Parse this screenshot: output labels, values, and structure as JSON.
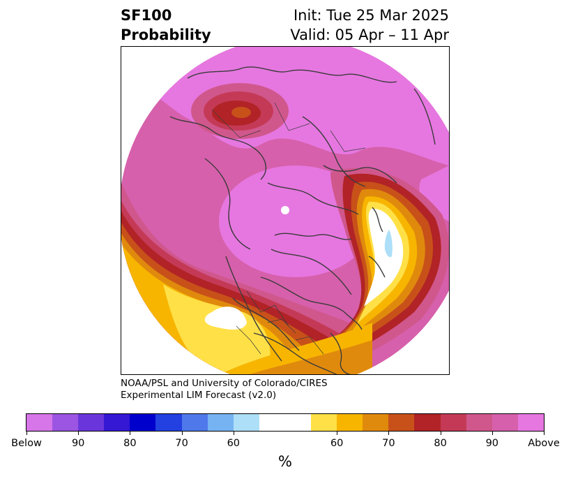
{
  "title": {
    "variable": "SF100",
    "subtitle": "Probability",
    "init": "Init: Tue 25 Mar 2025",
    "valid": "Valid: 05 Apr – 11 Apr"
  },
  "credit": {
    "line1": "NOAA/PSL and University of Colorado/CIRES",
    "line2": "Experimental LIM Forecast (v2.0)"
  },
  "colorbar": {
    "unit": "%",
    "colors": [
      "#d676e8",
      "#9b55e2",
      "#6a36db",
      "#3418d4",
      "#0000cd",
      "#2340e0",
      "#4f78ea",
      "#76b3f2",
      "#addff8",
      "#ffffff",
      "#ffffff",
      "#ffe047",
      "#f7b500",
      "#e08a0d",
      "#c8511a",
      "#b12326",
      "#c43a56",
      "#d0578c",
      "#d660ab",
      "#e677e0"
    ],
    "ticks": [
      "Below",
      "90",
      "80",
      "70",
      "60",
      "60",
      "70",
      "80",
      "90",
      "Above"
    ]
  },
  "map": {
    "projection": "polar-stereographic",
    "palette": {
      "magenta": "#e677e0",
      "pink": "#d660ab",
      "rose": "#d0578c",
      "crimson": "#c43a56",
      "red": "#b12326",
      "rust": "#c8511a",
      "orange": "#e08a0d",
      "gold": "#f7b500",
      "yellow": "#ffe047",
      "neutral": "#ffffff",
      "lightblue": "#addff8",
      "border": "#3a3a3a"
    }
  }
}
